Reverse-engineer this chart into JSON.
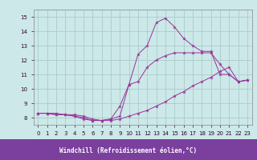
{
  "xlabel": "Windchill (Refroidissement éolien,°C)",
  "plot_bg": "#cce8e8",
  "fig_bg": "#cce8e8",
  "xlabel_bg": "#7b3f9e",
  "xlabel_color": "#ffffff",
  "grid_color": "#aacccc",
  "line_color": "#993399",
  "xlim": [
    -0.5,
    23.5
  ],
  "ylim": [
    7.5,
    15.5
  ],
  "yticks": [
    8,
    9,
    10,
    11,
    12,
    13,
    14,
    15
  ],
  "xticks": [
    0,
    1,
    2,
    3,
    4,
    5,
    6,
    7,
    8,
    9,
    10,
    11,
    12,
    13,
    14,
    15,
    16,
    17,
    18,
    19,
    20,
    21,
    22,
    23
  ],
  "series": [
    {
      "x": [
        0,
        1,
        2,
        3,
        4,
        5,
        6,
        7,
        8,
        9,
        10,
        11,
        12,
        13,
        14,
        15,
        16,
        17,
        18,
        19,
        20,
        21,
        22,
        23
      ],
      "y": [
        8.3,
        8.3,
        8.3,
        8.2,
        8.2,
        8.1,
        7.9,
        7.8,
        7.8,
        7.9,
        8.1,
        8.3,
        8.5,
        8.8,
        9.1,
        9.5,
        9.8,
        10.2,
        10.5,
        10.8,
        11.2,
        11.5,
        10.5,
        10.6
      ]
    },
    {
      "x": [
        0,
        1,
        2,
        3,
        4,
        5,
        6,
        7,
        8,
        9,
        10,
        11,
        12,
        13,
        14,
        15,
        16,
        17,
        18,
        19,
        20,
        21,
        22,
        23
      ],
      "y": [
        8.3,
        8.3,
        8.2,
        8.2,
        8.1,
        7.9,
        7.8,
        7.8,
        7.9,
        8.1,
        10.3,
        12.4,
        13.0,
        14.6,
        14.9,
        14.3,
        13.5,
        13.0,
        12.6,
        12.6,
        11.0,
        11.0,
        10.5,
        10.6
      ]
    },
    {
      "x": [
        0,
        1,
        2,
        3,
        4,
        5,
        6,
        7,
        8,
        9,
        10,
        11,
        12,
        13,
        14,
        15,
        16,
        17,
        18,
        19,
        20,
        21,
        22,
        23
      ],
      "y": [
        8.3,
        8.3,
        8.2,
        8.2,
        8.1,
        8.0,
        7.8,
        7.8,
        7.9,
        8.8,
        10.3,
        10.5,
        11.5,
        12.0,
        12.3,
        12.5,
        12.5,
        12.5,
        12.5,
        12.5,
        11.7,
        11.0,
        10.5,
        10.6
      ]
    }
  ]
}
